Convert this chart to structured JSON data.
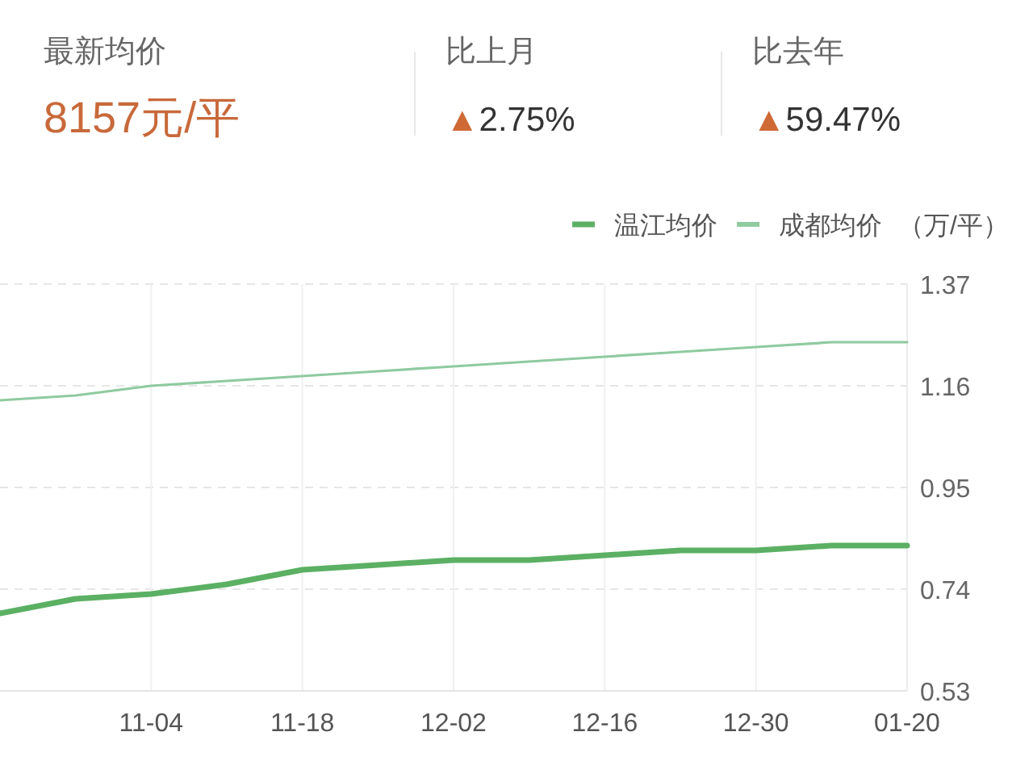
{
  "chart_data": {
    "type": "line",
    "annotations": [
      "最新均价",
      "8157元/平",
      "比上月",
      "▲2.75%",
      "比去年",
      "▲59.47%"
    ],
    "ylabel": "（万/平）",
    "categories": [
      null,
      null,
      "11-04",
      null,
      "11-18",
      null,
      "12-02",
      null,
      "12-16",
      null,
      "12-30",
      null,
      "01-20"
    ],
    "series": [
      {
        "name": "温江均价",
        "color": "#5bb063",
        "values": [
          0.69,
          0.72,
          0.73,
          0.75,
          0.78,
          0.79,
          0.8,
          0.8,
          0.81,
          0.82,
          0.82,
          0.83,
          0.83
        ]
      },
      {
        "name": "成都均价",
        "color": "#8fcaa0",
        "values": [
          1.13,
          1.14,
          1.16,
          1.17,
          1.18,
          1.19,
          1.2,
          1.21,
          1.22,
          1.23,
          1.24,
          1.25,
          1.25
        ]
      }
    ],
    "ylim": [
      0.53,
      1.37
    ],
    "yticks": [
      1.37,
      1.16,
      0.95,
      0.74,
      0.53
    ],
    "grid": true,
    "legend": "top right"
  }
}
